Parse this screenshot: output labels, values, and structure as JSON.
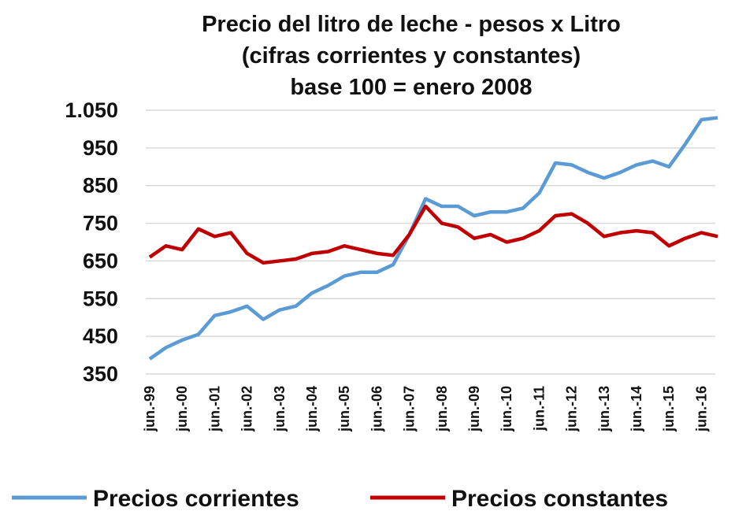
{
  "chart_data": {
    "type": "line",
    "title": [
      "Precio del litro de leche - pesos x Litro",
      "(cifras corrientes y constantes)",
      "base 100 = enero 2008"
    ],
    "categories": [
      "jun.-99",
      null,
      "jun.-00",
      null,
      "jun.-01",
      null,
      "jun.-02",
      null,
      "jun.-03",
      null,
      "jun.-04",
      null,
      "jun.-05",
      null,
      "jun.-06",
      null,
      "jun.-07",
      null,
      "jun.-08",
      null,
      "jun.-09",
      null,
      "jun.-10",
      null,
      "jun.-11",
      null,
      "jun.-12",
      null,
      "jun.-13",
      null,
      "jun.-14",
      null,
      "jun.-15",
      null,
      "jun.-16",
      null
    ],
    "series": [
      {
        "name": "Precios corrientes",
        "color": "#5b9bd5",
        "values": [
          390,
          420,
          440,
          455,
          505,
          515,
          530,
          495,
          520,
          530,
          565,
          585,
          610,
          620,
          620,
          640,
          720,
          815,
          795,
          795,
          770,
          780,
          780,
          790,
          830,
          910,
          905,
          885,
          870,
          885,
          905,
          915,
          900,
          960,
          1025,
          1030
        ]
      },
      {
        "name": "Precios constantes",
        "color": "#c00000",
        "values": [
          660,
          690,
          680,
          735,
          715,
          725,
          670,
          645,
          650,
          655,
          670,
          675,
          690,
          680,
          670,
          665,
          720,
          795,
          750,
          740,
          710,
          720,
          700,
          710,
          730,
          770,
          775,
          750,
          715,
          725,
          730,
          725,
          690,
          710,
          725,
          715
        ]
      }
    ],
    "ylim": [
      350,
      1050
    ],
    "yticks": [
      350,
      450,
      550,
      650,
      750,
      850,
      950,
      {
        "value": 1050,
        "label": "1.050"
      }
    ],
    "grid": true,
    "legend": "bottom"
  }
}
